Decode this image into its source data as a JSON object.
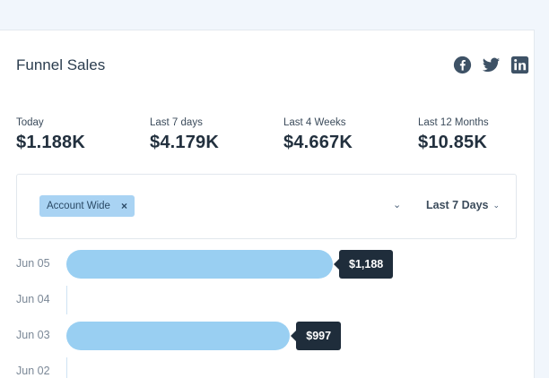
{
  "card": {
    "title": "Funnel Sales"
  },
  "share": [
    {
      "icon": "facebook-icon"
    },
    {
      "icon": "twitter-icon"
    },
    {
      "icon": "linkedin-icon"
    }
  ],
  "stats": [
    {
      "label": "Today",
      "value": "$1.188K"
    },
    {
      "label": "Last 7 days",
      "value": "$4.179K"
    },
    {
      "label": "Last 4 Weeks",
      "value": "$4.667K"
    },
    {
      "label": "Last 12 Months",
      "value": "$10.85K"
    }
  ],
  "filters": {
    "chip_label": "Account Wide",
    "chip_remove": "×",
    "expand_glyph": "⌄",
    "range_label": "Last 7 Days",
    "range_chevron": "⌄"
  },
  "chart_data": {
    "type": "bar",
    "orientation": "horizontal",
    "categories": [
      "Jun 05",
      "Jun 04",
      "Jun 03",
      "Jun 02"
    ],
    "values": [
      1188,
      0,
      997,
      null
    ],
    "value_labels": [
      "$1,188",
      "",
      "$997",
      ""
    ],
    "xlim": [
      0,
      1600
    ]
  },
  "colors": {
    "bar": "#99cff2",
    "tooltip": "#1f2d3b",
    "chip": "#a9d3f3",
    "social": "#3e5266"
  }
}
